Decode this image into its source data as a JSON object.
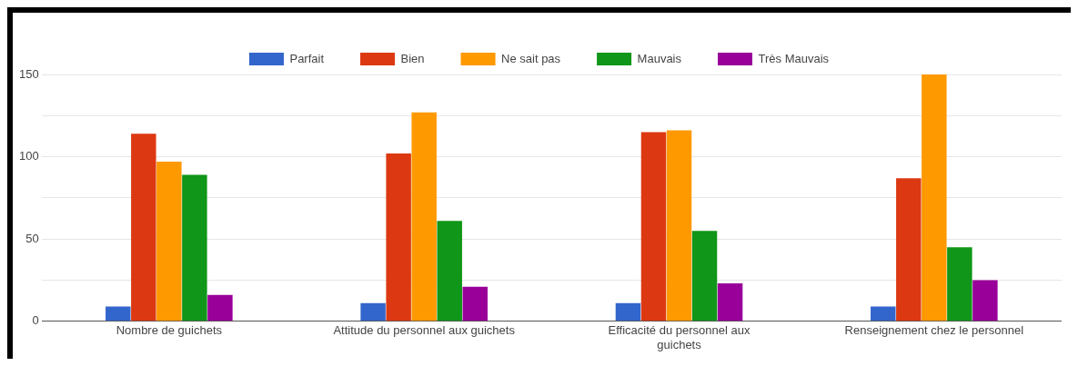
{
  "chart_data": {
    "type": "bar",
    "categories": [
      "Nombre de guichets",
      "Attitude du personnel aux guichets",
      "Efficacité du personnel aux guichets",
      "Renseignement chez le personnel"
    ],
    "series": [
      {
        "name": "Parfait",
        "color": "#3366cc",
        "values": [
          9,
          11,
          11,
          9
        ]
      },
      {
        "name": "Bien",
        "color": "#dc3912",
        "values": [
          114,
          102,
          115,
          87
        ]
      },
      {
        "name": "Ne sait pas",
        "color": "#ff9900",
        "values": [
          97,
          127,
          116,
          150
        ]
      },
      {
        "name": "Mauvais",
        "color": "#109618",
        "values": [
          89,
          61,
          55,
          45
        ]
      },
      {
        "name": "Très Mauvais",
        "color": "#990099",
        "values": [
          16,
          21,
          23,
          25
        ]
      }
    ],
    "ylim": [
      0,
      150
    ],
    "yticks": [
      0,
      {
        "value": 25,
        "label": null
      },
      50,
      {
        "value": 75,
        "label": null
      },
      100,
      {
        "value": 125,
        "label": null
      },
      150
    ],
    "grid": "y",
    "legend": "top"
  }
}
